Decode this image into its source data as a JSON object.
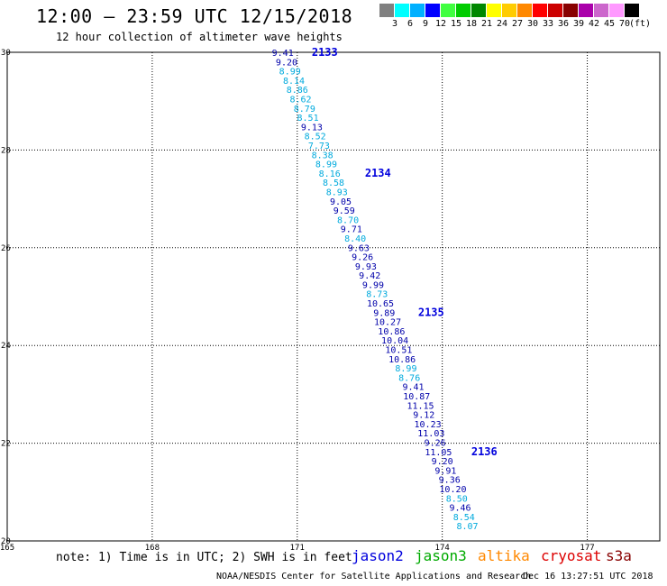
{
  "header": {
    "title": "12:00 – 23:59 UTC 12/15/2018",
    "subtitle": "12 hour collection of altimeter wave heights"
  },
  "colorbar": {
    "colors": [
      "#808080",
      "#00ffff",
      "#00b0ff",
      "#0000ff",
      "#40ff40",
      "#00cc00",
      "#008800",
      "#ffff00",
      "#ffcc00",
      "#ff8800",
      "#ff0000",
      "#cc0000",
      "#880000",
      "#aa00aa",
      "#cc66cc",
      "#ff99ff",
      "#000000"
    ],
    "labels": [
      "3",
      "6",
      "9",
      "12",
      "15",
      "18",
      "21",
      "24",
      "27",
      "30",
      "33",
      "36",
      "39",
      "42",
      "45",
      "70",
      "(ft)"
    ]
  },
  "chart_data": {
    "type": "scatter",
    "x_ticks": [
      "165",
      "168",
      "171",
      "174",
      "177"
    ],
    "y_ticks": [
      "20",
      "22",
      "24",
      "26",
      "28",
      "30"
    ],
    "xlim": [
      165,
      178.5
    ],
    "ylim": [
      20,
      30
    ],
    "grid": true,
    "colors": {
      "jason2": "#0000aa",
      "cryosat_light": "#00aadd"
    },
    "points": [
      {
        "lat": 30.0,
        "lon": 170.7,
        "v": "9.41",
        "s": "jason2"
      },
      {
        "lat": 29.81,
        "lon": 170.78,
        "v": "9.20",
        "s": "jason2"
      },
      {
        "lat": 29.62,
        "lon": 170.85,
        "v": "8.99",
        "s": "light"
      },
      {
        "lat": 29.43,
        "lon": 170.93,
        "v": "8.14",
        "s": "light"
      },
      {
        "lat": 29.24,
        "lon": 171.0,
        "v": "8.86",
        "s": "light"
      },
      {
        "lat": 29.05,
        "lon": 171.07,
        "v": "8.62",
        "s": "light"
      },
      {
        "lat": 28.86,
        "lon": 171.15,
        "v": "8.79",
        "s": "light"
      },
      {
        "lat": 28.67,
        "lon": 171.22,
        "v": "8.51",
        "s": "light"
      },
      {
        "lat": 28.48,
        "lon": 171.3,
        "v": "9.13",
        "s": "jason2"
      },
      {
        "lat": 28.29,
        "lon": 171.37,
        "v": "8.52",
        "s": "light"
      },
      {
        "lat": 28.1,
        "lon": 171.45,
        "v": "7.73",
        "s": "light"
      },
      {
        "lat": 27.91,
        "lon": 171.52,
        "v": "8.38",
        "s": "light"
      },
      {
        "lat": 27.72,
        "lon": 171.6,
        "v": "8.99",
        "s": "light"
      },
      {
        "lat": 27.53,
        "lon": 171.67,
        "v": "8.16",
        "s": "light"
      },
      {
        "lat": 27.34,
        "lon": 171.75,
        "v": "8.58",
        "s": "light"
      },
      {
        "lat": 27.15,
        "lon": 171.82,
        "v": "8.93",
        "s": "light"
      },
      {
        "lat": 26.96,
        "lon": 171.9,
        "v": "9.05",
        "s": "jason2"
      },
      {
        "lat": 26.77,
        "lon": 171.97,
        "v": "9.59",
        "s": "jason2"
      },
      {
        "lat": 26.58,
        "lon": 172.05,
        "v": "8.70",
        "s": "light"
      },
      {
        "lat": 26.39,
        "lon": 172.12,
        "v": "9.71",
        "s": "jason2"
      },
      {
        "lat": 26.2,
        "lon": 172.2,
        "v": "8.40",
        "s": "light"
      },
      {
        "lat": 26.01,
        "lon": 172.27,
        "v": "9.63",
        "s": "jason2"
      },
      {
        "lat": 25.82,
        "lon": 172.35,
        "v": "9.26",
        "s": "jason2"
      },
      {
        "lat": 25.63,
        "lon": 172.42,
        "v": "9.93",
        "s": "jason2"
      },
      {
        "lat": 25.44,
        "lon": 172.5,
        "v": "9.42",
        "s": "jason2"
      },
      {
        "lat": 25.25,
        "lon": 172.57,
        "v": "9.99",
        "s": "jason2"
      },
      {
        "lat": 25.06,
        "lon": 172.65,
        "v": "8.73",
        "s": "light"
      },
      {
        "lat": 24.87,
        "lon": 172.72,
        "v": "10.65",
        "s": "jason2"
      },
      {
        "lat": 24.68,
        "lon": 172.8,
        "v": "9.89",
        "s": "jason2"
      },
      {
        "lat": 24.49,
        "lon": 172.87,
        "v": "10.27",
        "s": "jason2"
      },
      {
        "lat": 24.3,
        "lon": 172.95,
        "v": "10.86",
        "s": "jason2"
      },
      {
        "lat": 24.11,
        "lon": 173.02,
        "v": "10.04",
        "s": "jason2"
      },
      {
        "lat": 23.92,
        "lon": 173.1,
        "v": "10.51",
        "s": "jason2"
      },
      {
        "lat": 23.73,
        "lon": 173.17,
        "v": "10.86",
        "s": "jason2"
      },
      {
        "lat": 23.54,
        "lon": 173.25,
        "v": "8.99",
        "s": "light"
      },
      {
        "lat": 23.35,
        "lon": 173.32,
        "v": "8.76",
        "s": "light"
      },
      {
        "lat": 23.16,
        "lon": 173.4,
        "v": "9.41",
        "s": "jason2"
      },
      {
        "lat": 22.97,
        "lon": 173.47,
        "v": "10.87",
        "s": "jason2"
      },
      {
        "lat": 22.78,
        "lon": 173.55,
        "v": "11.15",
        "s": "jason2"
      },
      {
        "lat": 22.59,
        "lon": 173.62,
        "v": "9.12",
        "s": "jason2"
      },
      {
        "lat": 22.4,
        "lon": 173.7,
        "v": "10.23",
        "s": "jason2"
      },
      {
        "lat": 22.21,
        "lon": 173.77,
        "v": "11.03",
        "s": "jason2"
      },
      {
        "lat": 22.02,
        "lon": 173.85,
        "v": "9.26",
        "s": "jason2"
      },
      {
        "lat": 21.83,
        "lon": 173.92,
        "v": "11.05",
        "s": "jason2"
      },
      {
        "lat": 21.64,
        "lon": 174.0,
        "v": "9.20",
        "s": "jason2"
      },
      {
        "lat": 21.45,
        "lon": 174.07,
        "v": "9.91",
        "s": "jason2"
      },
      {
        "lat": 21.26,
        "lon": 174.15,
        "v": "9.36",
        "s": "jason2"
      },
      {
        "lat": 21.07,
        "lon": 174.22,
        "v": "10.20",
        "s": "jason2"
      },
      {
        "lat": 20.88,
        "lon": 174.3,
        "v": "8.50",
        "s": "light"
      },
      {
        "lat": 20.69,
        "lon": 174.37,
        "v": "9.46",
        "s": "jason2"
      },
      {
        "lat": 20.5,
        "lon": 174.45,
        "v": "8.54",
        "s": "light"
      },
      {
        "lat": 20.31,
        "lon": 174.52,
        "v": "8.07",
        "s": "light"
      }
    ],
    "passes": [
      {
        "lat": 30.0,
        "lon": 171.3,
        "label": "2133"
      },
      {
        "lat": 27.53,
        "lon": 172.4,
        "label": "2134"
      },
      {
        "lat": 24.68,
        "lon": 173.5,
        "label": "2135"
      },
      {
        "lat": 21.83,
        "lon": 174.6,
        "label": "2136"
      }
    ]
  },
  "footer": {
    "note": "note: 1) Time is in UTC; 2) SWH is in feet",
    "legend": [
      {
        "name": "jason2",
        "color": "#0000dd"
      },
      {
        "name": "jason3",
        "color": "#00aa00"
      },
      {
        "name": "altika",
        "color": "#ff8800"
      },
      {
        "name": "cryosat",
        "color": "#dd0000"
      },
      {
        "name": "s3a",
        "color": "#880000"
      }
    ],
    "credit": "NOAA/NESDIS Center for Satellite Applications and Research",
    "timestamp": "Dec 16 13:27:51 UTC 2018"
  }
}
